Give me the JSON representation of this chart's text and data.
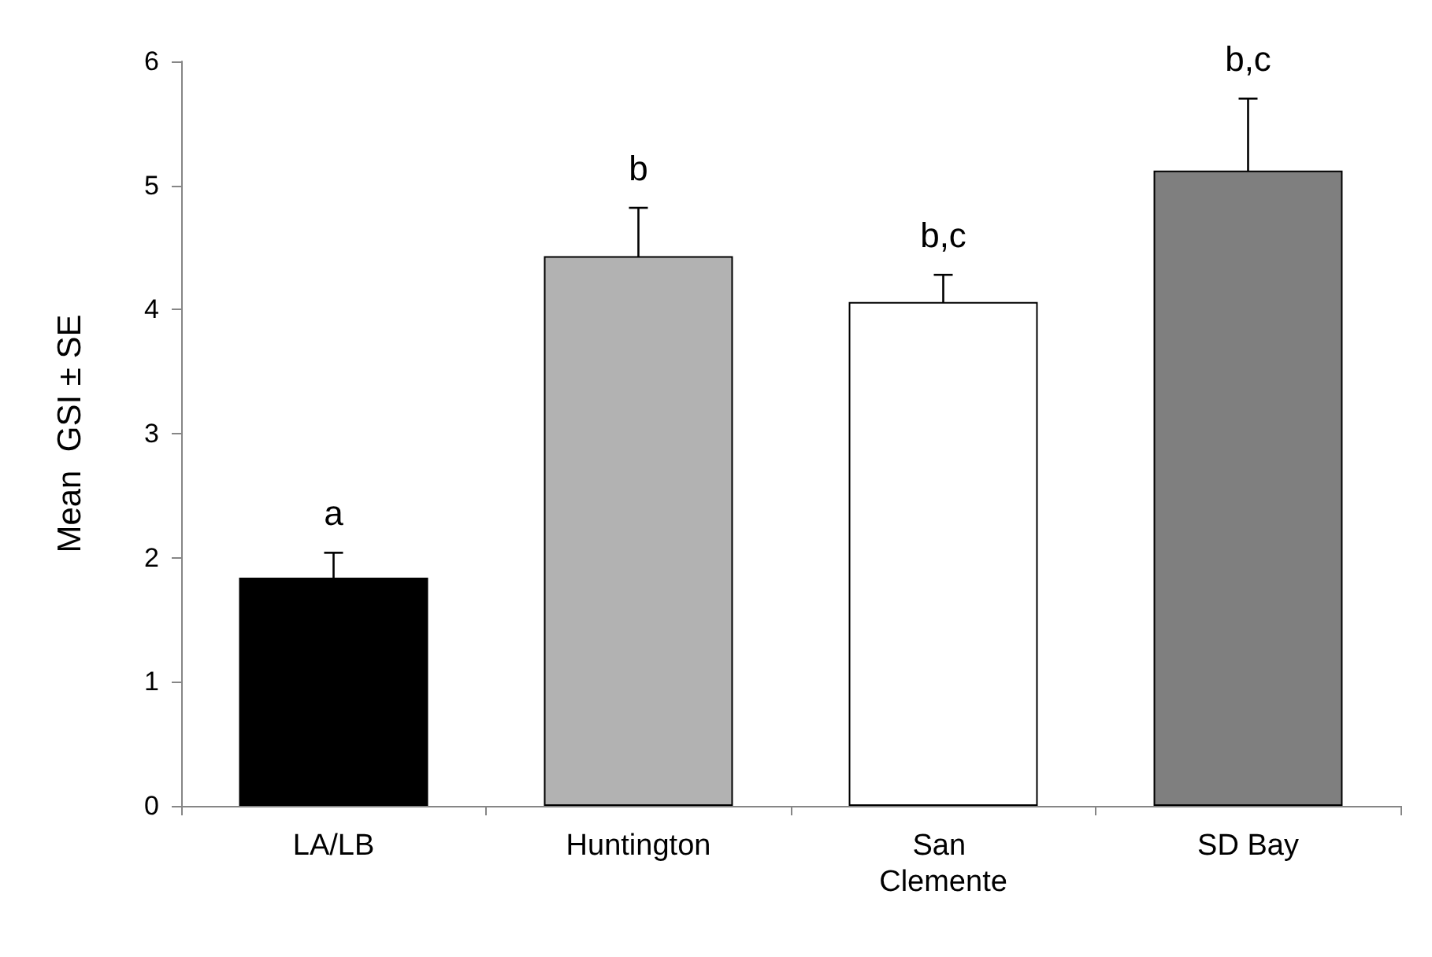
{
  "chart_data": {
    "type": "bar",
    "ylabel": "Mean  GSI ± SE",
    "categories": [
      "LA/LB",
      "Huntington",
      "San Clemente",
      "SD Bay"
    ],
    "values": [
      1.84,
      4.43,
      4.06,
      5.12
    ],
    "errors": [
      0.2,
      0.39,
      0.22,
      0.58
    ],
    "colors": [
      "#000000",
      "#b2b2b2",
      "#ffffff",
      "#7f7f7f"
    ],
    "ylim": [
      0,
      6
    ],
    "yticks": [
      0,
      1,
      2,
      3,
      4,
      5,
      6
    ],
    "grid": false,
    "annotations": [
      {
        "text": "a",
        "x": "LA/LB",
        "y": 2.04
      },
      {
        "text": "b",
        "x": "Huntington",
        "y": 4.82
      },
      {
        "text": "b,c",
        "x": "San Clemente",
        "y": 4.28
      },
      {
        "text": "b,c",
        "x": "SD Bay",
        "y": 5.7
      }
    ]
  }
}
